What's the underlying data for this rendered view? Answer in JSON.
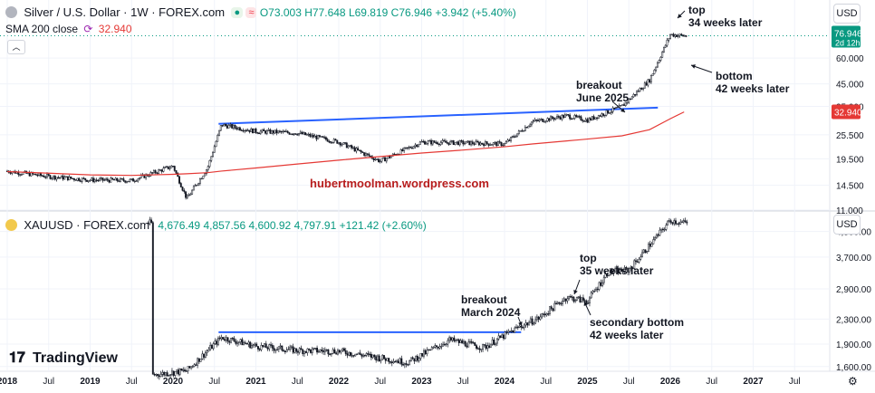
{
  "pane1": {
    "symbol": "Silver / U.S. Dollar · 1W · FOREX.com",
    "ohlc": {
      "o": "O73.003",
      "h": "H77.648",
      "l": "L69.819",
      "c": "C76.946",
      "chg": "+3.942 (+5.40%)"
    },
    "sma_label": "SMA 200 close",
    "sma_value": "32.940",
    "currency": "USD",
    "price_tag": "76.946",
    "price_tag_time": "2d 12h",
    "sma_tag": "32.940",
    "axis_ticks": [
      "60.000",
      "45.000",
      "35.000",
      "25.500",
      "19.500",
      "14.500",
      "11.000"
    ],
    "watermark": "hubertmoolman.wordpress.com",
    "annotations": [
      {
        "text": [
          "top",
          "34 weeks later"
        ]
      },
      {
        "text": [
          "bottom",
          "42 weeks later"
        ]
      },
      {
        "text": [
          "breakout",
          "June 2025"
        ]
      }
    ]
  },
  "pane2": {
    "symbol": "XAUUSD · FOREX.com",
    "ohlc": {
      "o": "4,676.49",
      "h": "4,857.56",
      "l": "4,600.92",
      "c": "4,797.91",
      "chg": "+121.42 (+2.60%)"
    },
    "currency": "USD",
    "axis_ticks": [
      "4,500.00",
      "3,700.00",
      "2,900.00",
      "2,300.00",
      "1,900.00",
      "1,600.00"
    ],
    "annotations": [
      {
        "text": [
          "top",
          "35 weeks later"
        ]
      },
      {
        "text": [
          "breakout",
          "March 2024"
        ]
      },
      {
        "text": [
          "secondary bottom",
          "42 weeks later"
        ]
      }
    ]
  },
  "time_axis": [
    "2018",
    "Jul",
    "2019",
    "Jul",
    "2020",
    "Jul",
    "2021",
    "Jul",
    "2022",
    "Jul",
    "2023",
    "Jul",
    "2024",
    "Jul",
    "2025",
    "Jul",
    "2026",
    "Jul",
    "2027",
    "Jul"
  ],
  "logo": "TradingView",
  "colors": {
    "up": "#089981",
    "down": "#f23645",
    "sma": "#e53935",
    "trend": "#2962ff",
    "watermark": "#b71c1c",
    "bg": "#ffffff",
    "candle": "#131722"
  },
  "chart_data": [
    {
      "type": "line",
      "title": "Silver / U.S. Dollar · 1W · FOREX.com",
      "y_scale": "log",
      "x": [
        "2018-01",
        "2018-07",
        "2019-01",
        "2019-07",
        "2020-01",
        "2020-03",
        "2020-06",
        "2020-08",
        "2021-01",
        "2021-07",
        "2022-01",
        "2022-07",
        "2023-01",
        "2023-07",
        "2024-01",
        "2024-05",
        "2024-10",
        "2025-01",
        "2025-06",
        "2025-10",
        "2026-01",
        "2026-03"
      ],
      "series": [
        {
          "name": "close",
          "values": [
            17.0,
            16.0,
            15.4,
            15.3,
            18.0,
            12.5,
            17.6,
            28.5,
            26.5,
            26.0,
            23.5,
            19.0,
            23.5,
            23.3,
            23.0,
            29.5,
            31.5,
            30.0,
            35.0,
            47.0,
            78.0,
            76.9
          ]
        },
        {
          "name": "SMA 200 close",
          "values": [
            16.9,
            16.6,
            16.3,
            16.2,
            16.4,
            16.5,
            16.7,
            17.0,
            17.6,
            18.4,
            19.2,
            20.0,
            20.8,
            21.5,
            22.3,
            23.0,
            23.8,
            24.3,
            25.2,
            27.0,
            30.5,
            32.9
          ]
        }
      ]
    },
    {
      "type": "line",
      "title": "XAUUSD · FOREX.com",
      "y_scale": "log",
      "x": [
        "2019-10",
        "2020-03",
        "2020-08",
        "2021-01",
        "2021-07",
        "2022-01",
        "2022-07",
        "2022-11",
        "2023-05",
        "2023-10",
        "2024-03",
        "2024-06",
        "2024-10",
        "2025-01",
        "2025-04",
        "2025-07",
        "2025-10",
        "2026-01",
        "2026-03"
      ],
      "series": [
        {
          "name": "close",
          "values": [
            1500,
            1550,
            2000,
            1870,
            1810,
            1800,
            1710,
            1650,
            1960,
            1850,
            2160,
            2320,
            2720,
            2640,
            3300,
            3350,
            4050,
            4900,
            4798
          ]
        }
      ]
    }
  ]
}
